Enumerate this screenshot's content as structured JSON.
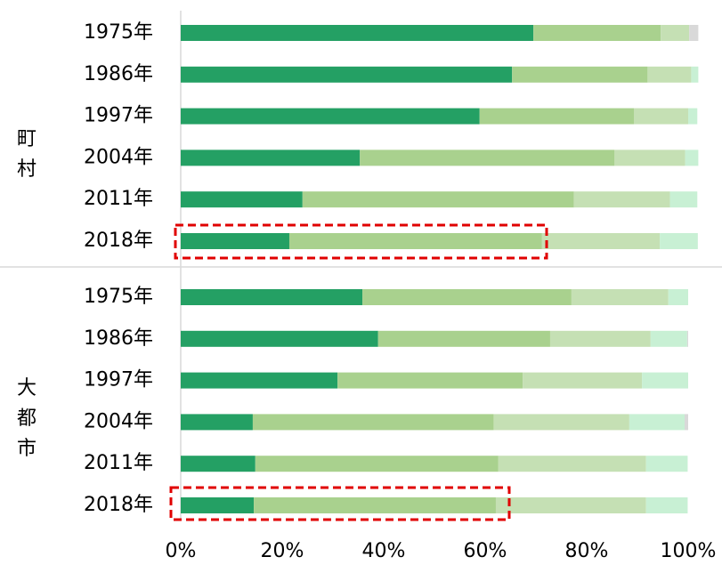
{
  "chart_data": [
    {
      "type": "bar",
      "orientation": "horizontal",
      "stacked": true,
      "label": "町村",
      "categories": [
        "1975年",
        "1986年",
        "1997年",
        "2004年",
        "2011年",
        "2018年"
      ],
      "xlim": [
        0,
        100
      ],
      "series": [
        {
          "color": "#24a064",
          "values": [
            69.5,
            65.3,
            58.9,
            35.3,
            24.0,
            21.4
          ]
        },
        {
          "color": "#a9d18e",
          "values": [
            25.1,
            26.7,
            30.4,
            50.2,
            53.5,
            49.8
          ]
        },
        {
          "color": "#c5e0b4",
          "values": [
            5.6,
            8.6,
            10.7,
            13.9,
            18.9,
            23.2
          ]
        },
        {
          "color": "#c8f0d4",
          "values": [
            0,
            1.4,
            1.8,
            2.6,
            5.4,
            7.5
          ]
        },
        {
          "color": "#d9d9d9",
          "values": [
            1.8,
            0,
            0,
            0,
            0,
            0
          ]
        }
      ]
    },
    {
      "type": "bar",
      "orientation": "horizontal",
      "stacked": true,
      "label": "大都市",
      "categories": [
        "1975年",
        "1986年",
        "1997年",
        "2004年",
        "2011年",
        "2018年"
      ],
      "xlim": [
        0,
        100
      ],
      "xticks": [
        {
          "value": 0,
          "label": "0%"
        },
        {
          "value": 20,
          "label": "20%"
        },
        {
          "value": 40,
          "label": "40%"
        },
        {
          "value": 60,
          "label": "60%"
        },
        {
          "value": 80,
          "label": "80%"
        },
        {
          "value": 100,
          "label": "100%"
        }
      ],
      "series": [
        {
          "color": "#24a064",
          "values": [
            35.8,
            38.9,
            30.9,
            14.2,
            14.7,
            14.4
          ]
        },
        {
          "color": "#a9d18e",
          "values": [
            41.2,
            33.9,
            36.5,
            47.5,
            47.9,
            47.7
          ]
        },
        {
          "color": "#c5e0b4",
          "values": [
            19.1,
            19.8,
            23.5,
            26.7,
            29.1,
            29.6
          ]
        },
        {
          "color": "#c8f0d4",
          "values": [
            3.9,
            7.2,
            9.1,
            10.9,
            8.2,
            8.2
          ]
        },
        {
          "color": "#d9d9d9",
          "values": [
            0,
            0.2,
            0,
            0.7,
            0,
            0
          ]
        }
      ]
    }
  ]
}
